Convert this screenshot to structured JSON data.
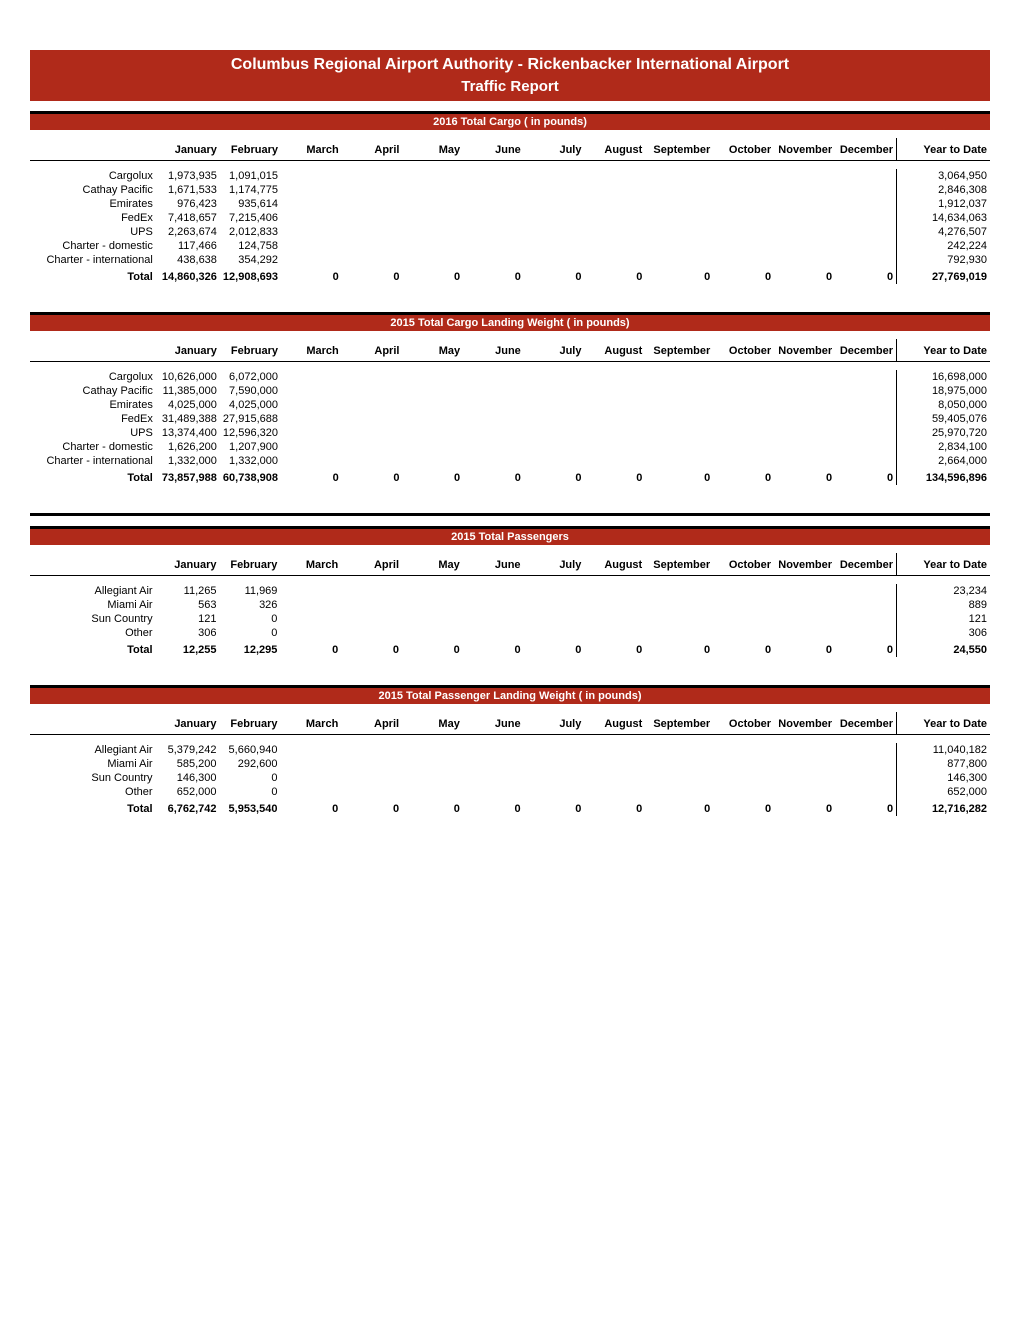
{
  "colors": {
    "header_bg": "#b02a1a",
    "header_text": "#ffffff",
    "text": "#000000",
    "divider": "#000000"
  },
  "header": {
    "line1": "Columbus Regional Airport Authority - Rickenbacker International Airport",
    "line2": "Traffic Report"
  },
  "months": [
    "January",
    "February",
    "March",
    "April",
    "May",
    "June",
    "July",
    "August",
    "September",
    "October",
    "November",
    "December"
  ],
  "ytd_label": "Year to Date",
  "sections": [
    {
      "title": "2016 Total Cargo ( in pounds)",
      "rows": [
        {
          "label": "Cargolux",
          "vals": [
            "1,973,935",
            "1,091,015",
            "",
            "",
            "",
            "",
            "",
            "",
            "",
            "",
            "",
            ""
          ],
          "ytd": "3,064,950"
        },
        {
          "label": "Cathay Pacific",
          "vals": [
            "1,671,533",
            "1,174,775",
            "",
            "",
            "",
            "",
            "",
            "",
            "",
            "",
            "",
            ""
          ],
          "ytd": "2,846,308"
        },
        {
          "label": "Emirates",
          "vals": [
            "976,423",
            "935,614",
            "",
            "",
            "",
            "",
            "",
            "",
            "",
            "",
            "",
            ""
          ],
          "ytd": "1,912,037"
        },
        {
          "label": "FedEx",
          "vals": [
            "7,418,657",
            "7,215,406",
            "",
            "",
            "",
            "",
            "",
            "",
            "",
            "",
            "",
            ""
          ],
          "ytd": "14,634,063"
        },
        {
          "label": "UPS",
          "vals": [
            "2,263,674",
            "2,012,833",
            "",
            "",
            "",
            "",
            "",
            "",
            "",
            "",
            "",
            ""
          ],
          "ytd": "4,276,507"
        },
        {
          "label": "Charter - domestic",
          "vals": [
            "117,466",
            "124,758",
            "",
            "",
            "",
            "",
            "",
            "",
            "",
            "",
            "",
            ""
          ],
          "ytd": "242,224"
        },
        {
          "label": "Charter - international",
          "vals": [
            "438,638",
            "354,292",
            "",
            "",
            "",
            "",
            "",
            "",
            "",
            "",
            "",
            ""
          ],
          "ytd": "792,930"
        }
      ],
      "total": {
        "label": "Total",
        "vals": [
          "14,860,326",
          "12,908,693",
          "0",
          "0",
          "0",
          "0",
          "0",
          "0",
          "0",
          "0",
          "0",
          "0"
        ],
        "ytd": "27,769,019"
      }
    },
    {
      "title": "2015 Total Cargo Landing Weight ( in pounds)",
      "rows": [
        {
          "label": "Cargolux",
          "vals": [
            "10,626,000",
            "6,072,000",
            "",
            "",
            "",
            "",
            "",
            "",
            "",
            "",
            "",
            ""
          ],
          "ytd": "16,698,000"
        },
        {
          "label": "Cathay Pacific",
          "vals": [
            "11,385,000",
            "7,590,000",
            "",
            "",
            "",
            "",
            "",
            "",
            "",
            "",
            "",
            ""
          ],
          "ytd": "18,975,000"
        },
        {
          "label": "Emirates",
          "vals": [
            "4,025,000",
            "4,025,000",
            "",
            "",
            "",
            "",
            "",
            "",
            "",
            "",
            "",
            ""
          ],
          "ytd": "8,050,000"
        },
        {
          "label": "FedEx",
          "vals": [
            "31,489,388",
            "27,915,688",
            "",
            "",
            "",
            "",
            "",
            "",
            "",
            "",
            "",
            ""
          ],
          "ytd": "59,405,076"
        },
        {
          "label": "UPS",
          "vals": [
            "13,374,400",
            "12,596,320",
            "",
            "",
            "",
            "",
            "",
            "",
            "",
            "",
            "",
            ""
          ],
          "ytd": "25,970,720"
        },
        {
          "label": "Charter - domestic",
          "vals": [
            "1,626,200",
            "1,207,900",
            "",
            "",
            "",
            "",
            "",
            "",
            "",
            "",
            "",
            ""
          ],
          "ytd": "2,834,100"
        },
        {
          "label": "Charter - international",
          "vals": [
            "1,332,000",
            "1,332,000",
            "",
            "",
            "",
            "",
            "",
            "",
            "",
            "",
            "",
            ""
          ],
          "ytd": "2,664,000"
        }
      ],
      "total": {
        "label": "Total",
        "vals": [
          "73,857,988",
          "60,738,908",
          "0",
          "0",
          "0",
          "0",
          "0",
          "0",
          "0",
          "0",
          "0",
          "0"
        ],
        "ytd": "134,596,896"
      }
    },
    {
      "title": "2015 Total Passengers",
      "rows": [
        {
          "label": "Allegiant Air",
          "vals": [
            "11,265",
            "11,969",
            "",
            "",
            "",
            "",
            "",
            "",
            "",
            "",
            "",
            ""
          ],
          "ytd": "23,234"
        },
        {
          "label": "Miami Air",
          "vals": [
            "563",
            "326",
            "",
            "",
            "",
            "",
            "",
            "",
            "",
            "",
            "",
            ""
          ],
          "ytd": "889"
        },
        {
          "label": "Sun Country",
          "vals": [
            "121",
            "0",
            "",
            "",
            "",
            "",
            "",
            "",
            "",
            "",
            "",
            ""
          ],
          "ytd": "121"
        },
        {
          "label": "Other",
          "vals": [
            "306",
            "0",
            "",
            "",
            "",
            "",
            "",
            "",
            "",
            "",
            "",
            ""
          ],
          "ytd": "306"
        }
      ],
      "total": {
        "label": "Total",
        "vals": [
          "12,255",
          "12,295",
          "0",
          "0",
          "0",
          "0",
          "0",
          "0",
          "0",
          "0",
          "0",
          "0"
        ],
        "ytd": "24,550"
      }
    },
    {
      "title": "2015 Total Passenger Landing Weight ( in pounds)",
      "rows": [
        {
          "label": "Allegiant Air",
          "vals": [
            "5,379,242",
            "5,660,940",
            "",
            "",
            "",
            "",
            "",
            "",
            "",
            "",
            "",
            ""
          ],
          "ytd": "11,040,182"
        },
        {
          "label": "Miami Air",
          "vals": [
            "585,200",
            "292,600",
            "",
            "",
            "",
            "",
            "",
            "",
            "",
            "",
            "",
            ""
          ],
          "ytd": "877,800"
        },
        {
          "label": "Sun Country",
          "vals": [
            "146,300",
            "0",
            "",
            "",
            "",
            "",
            "",
            "",
            "",
            "",
            "",
            ""
          ],
          "ytd": "146,300"
        },
        {
          "label": "Other",
          "vals": [
            "652,000",
            "0",
            "",
            "",
            "",
            "",
            "",
            "",
            "",
            "",
            "",
            ""
          ],
          "ytd": "652,000"
        }
      ],
      "total": {
        "label": "Total",
        "vals": [
          "6,762,742",
          "5,953,540",
          "0",
          "0",
          "0",
          "0",
          "0",
          "0",
          "0",
          "0",
          "0",
          "0"
        ],
        "ytd": "12,716,282"
      }
    }
  ],
  "group_breaks": [
    2
  ]
}
